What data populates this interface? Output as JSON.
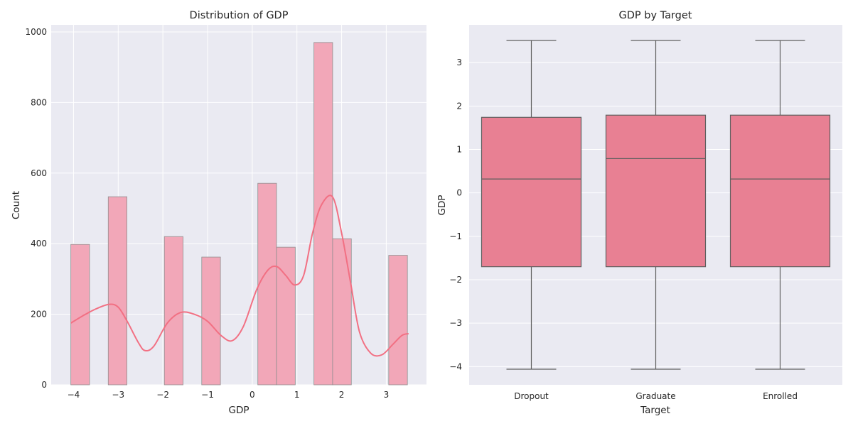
{
  "chart_data": [
    {
      "type": "bar",
      "title": "Distribution of GDP",
      "xlabel": "GDP",
      "ylabel": "Count",
      "xlim": [
        -4.5,
        3.9
      ],
      "ylim": [
        0,
        1020
      ],
      "xticks": [
        -4,
        -3,
        -2,
        -1,
        0,
        1,
        2,
        3
      ],
      "xtick_labels": [
        "−4",
        "−3",
        "−2",
        "−1",
        "0",
        "1",
        "2",
        "3"
      ],
      "yticks": [
        0,
        200,
        400,
        600,
        800,
        1000
      ],
      "ytick_labels": [
        "0",
        "200",
        "400",
        "600",
        "800",
        "1000"
      ],
      "bin_start": -4.06,
      "bin_width": 0.4185,
      "counts": [
        398,
        0,
        533,
        0,
        0,
        420,
        0,
        362,
        0,
        0,
        571,
        390,
        0,
        970,
        414,
        0,
        0,
        367
      ],
      "kde": {
        "x": [
          -4.06,
          -3.8,
          -3.5,
          -3.2,
          -3.0,
          -2.8,
          -2.55,
          -2.4,
          -2.2,
          -1.9,
          -1.6,
          -1.3,
          -1.0,
          -0.7,
          -0.45,
          -0.2,
          0.1,
          0.35,
          0.55,
          0.75,
          0.95,
          1.15,
          1.35,
          1.55,
          1.8,
          2.0,
          2.2,
          2.4,
          2.65,
          2.9,
          3.15,
          3.35,
          3.5
        ],
        "y": [
          175,
          195,
          215,
          228,
          220,
          180,
          120,
          97,
          110,
          175,
          205,
          200,
          180,
          140,
          125,
          165,
          270,
          325,
          335,
          310,
          283,
          310,
          430,
          510,
          532,
          430,
          290,
          150,
          90,
          85,
          115,
          140,
          145
        ]
      },
      "grid": true,
      "bar_color": "#f2a7b8",
      "line_color": "#f27083"
    },
    {
      "type": "box",
      "title": "GDP by Target",
      "xlabel": "Target",
      "ylabel": "GDP",
      "ylim": [
        -4.42,
        3.87
      ],
      "yticks": [
        -4,
        -3,
        -2,
        -1,
        0,
        1,
        2,
        3
      ],
      "ytick_labels": [
        "−4",
        "−3",
        "−2",
        "−1",
        "0",
        "1",
        "2",
        "3"
      ],
      "categories": [
        "Dropout",
        "Graduate",
        "Enrolled"
      ],
      "boxes": [
        {
          "whisker_low": -4.06,
          "q1": -1.7,
          "median": 0.32,
          "q3": 1.74,
          "whisker_high": 3.51
        },
        {
          "whisker_low": -4.06,
          "q1": -1.7,
          "median": 0.79,
          "q3": 1.79,
          "whisker_high": 3.51
        },
        {
          "whisker_low": -4.06,
          "q1": -1.7,
          "median": 0.32,
          "q3": 1.79,
          "whisker_high": 3.51
        }
      ],
      "grid": true,
      "box_color": "#e88093"
    }
  ]
}
